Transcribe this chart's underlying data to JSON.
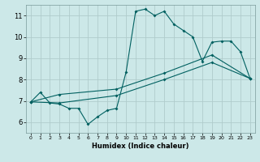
{
  "title": "",
  "xlabel": "Humidex (Indice chaleur)",
  "ylabel": "",
  "bg_color": "#cce8e8",
  "grid_color": "#b0cccc",
  "line_color": "#006060",
  "xlim": [
    -0.5,
    23.5
  ],
  "ylim": [
    5.5,
    11.5
  ],
  "xticks": [
    0,
    1,
    2,
    3,
    4,
    5,
    6,
    7,
    8,
    9,
    10,
    11,
    12,
    13,
    14,
    15,
    16,
    17,
    18,
    19,
    20,
    21,
    22,
    23
  ],
  "yticks": [
    6,
    7,
    8,
    9,
    10,
    11
  ],
  "line1_x": [
    0,
    1,
    2,
    3,
    4,
    5,
    6,
    7,
    8,
    9,
    10,
    11,
    12,
    13,
    14,
    15,
    16,
    17,
    18,
    19,
    20,
    21,
    22,
    23
  ],
  "line1_y": [
    6.95,
    7.4,
    6.9,
    6.85,
    6.65,
    6.65,
    5.9,
    6.25,
    6.55,
    6.65,
    8.35,
    11.2,
    11.3,
    11.0,
    11.2,
    10.6,
    10.3,
    10.0,
    8.85,
    9.75,
    9.8,
    9.8,
    9.3,
    8.05
  ],
  "line2_x": [
    0,
    3,
    9,
    14,
    19,
    23
  ],
  "line2_y": [
    6.95,
    6.9,
    7.25,
    8.0,
    8.8,
    8.05
  ],
  "line3_x": [
    0,
    3,
    9,
    14,
    19,
    23
  ],
  "line3_y": [
    6.95,
    7.3,
    7.55,
    8.3,
    9.15,
    8.05
  ],
  "xlabel_fontsize": 6.0,
  "tick_fontsize_x": 4.5,
  "tick_fontsize_y": 6.0,
  "linewidth": 0.8,
  "markersize": 2.0
}
